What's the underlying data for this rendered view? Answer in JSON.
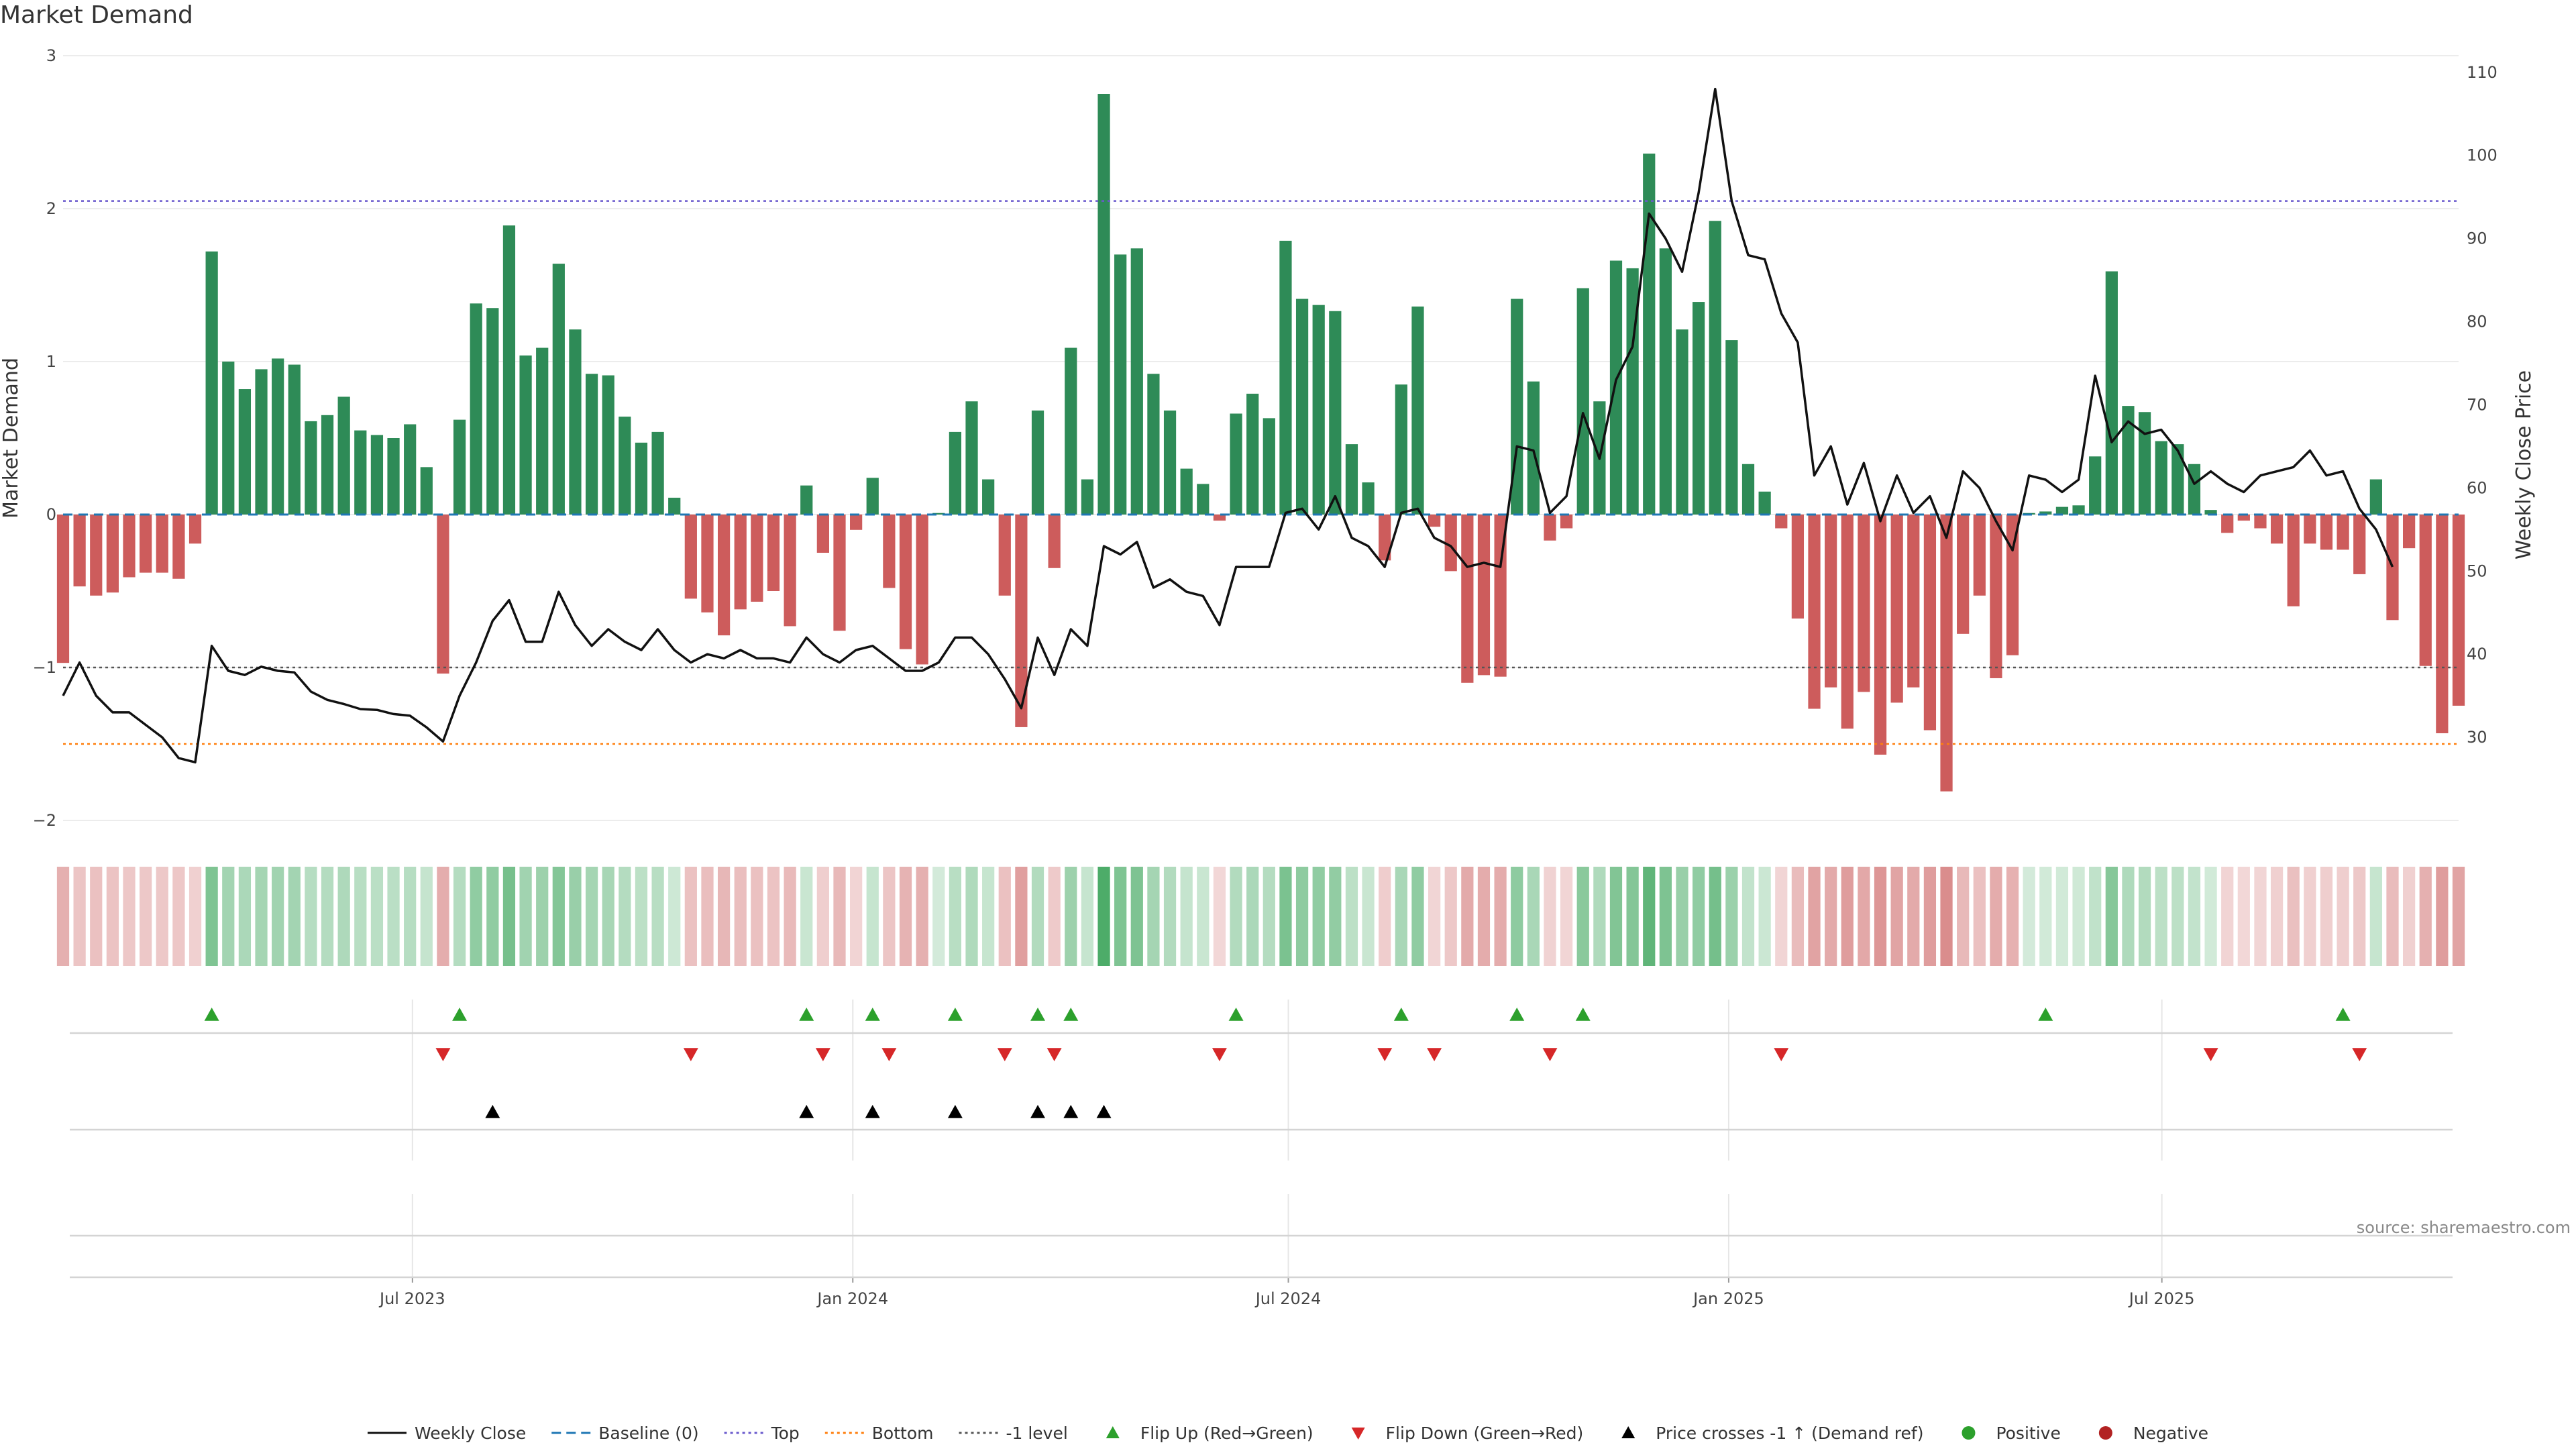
{
  "chart_data": {
    "type": "bar",
    "title": "Market Demand",
    "ylabel": "Market Demand",
    "y2label": "Weekly Close Price",
    "ylim": [
      -2,
      3
    ],
    "y2lim": [
      20,
      112
    ],
    "yticks": [
      3,
      2,
      1,
      0,
      -1,
      -2
    ],
    "yticklabels": [
      "3",
      "2",
      "1",
      "0",
      "−1",
      "−2"
    ],
    "y2ticks": [
      110,
      100,
      90,
      80,
      70,
      60,
      50,
      40,
      30
    ],
    "reference_lines": {
      "top": 2.05,
      "bottom": -1.5,
      "minus_one": -1.0,
      "baseline": 0
    },
    "x_start": "2023-02-05",
    "x_end": "2025-11-02",
    "xticks": [
      {
        "label": "Jul 2023",
        "date": "2023-07-01"
      },
      {
        "label": "Jan 2024",
        "date": "2024-01-01"
      },
      {
        "label": "Jul 2024",
        "date": "2024-07-01"
      },
      {
        "label": "Jan 2025",
        "date": "2025-01-01"
      },
      {
        "label": "Jul 2025",
        "date": "2025-07-01"
      }
    ],
    "series": [
      {
        "name": "Market Demand",
        "kind": "bar",
        "values": [
          -0.97,
          -0.47,
          -0.53,
          -0.51,
          -0.41,
          -0.38,
          -0.38,
          -0.42,
          -0.19,
          1.72,
          1.0,
          0.82,
          0.95,
          1.02,
          0.98,
          0.61,
          0.65,
          0.77,
          0.55,
          0.52,
          0.5,
          0.59,
          0.31,
          -1.04,
          0.62,
          1.38,
          1.35,
          1.89,
          1.04,
          1.09,
          1.64,
          1.21,
          0.92,
          0.91,
          0.64,
          0.47,
          0.54,
          0.11,
          -0.55,
          -0.64,
          -0.79,
          -0.62,
          -0.57,
          -0.5,
          -0.73,
          0.19,
          -0.25,
          -0.76,
          -0.1,
          0.24,
          -0.48,
          -0.88,
          -0.98,
          0.01,
          0.54,
          0.74,
          0.23,
          -0.53,
          -1.39,
          0.68,
          -0.35,
          1.09,
          0.23,
          2.75,
          1.7,
          1.74,
          0.92,
          0.68,
          0.3,
          0.2,
          -0.04,
          0.66,
          0.79,
          0.63,
          1.79,
          1.41,
          1.37,
          1.33,
          0.46,
          0.21,
          -0.3,
          0.85,
          1.36,
          -0.08,
          -0.37,
          -1.1,
          -1.05,
          -1.06,
          1.41,
          0.87,
          -0.17,
          -0.09,
          1.48,
          0.74,
          1.66,
          1.61,
          2.36,
          1.74,
          1.21,
          1.39,
          1.92,
          1.14,
          0.33,
          0.15,
          -0.09,
          -0.68,
          -1.27,
          -1.13,
          -1.4,
          -1.16,
          -1.57,
          -1.23,
          -1.13,
          -1.41,
          -1.81,
          -0.78,
          -0.53,
          -1.07,
          -0.92,
          0.01,
          0.02,
          0.05,
          0.06,
          0.38,
          1.59,
          0.71,
          0.67,
          0.48,
          0.46,
          0.33,
          0.03,
          -0.12,
          -0.04,
          -0.09,
          -0.19,
          -0.6,
          -0.19,
          -0.23,
          -0.23,
          -0.39,
          0.23,
          -0.69,
          -0.22,
          -0.99,
          -1.43,
          -1.25
        ]
      },
      {
        "name": "Weekly Close",
        "kind": "line",
        "values": [
          35.0,
          39.0,
          35.0,
          33.0,
          33.0,
          31.5,
          30.0,
          27.5,
          27.0,
          41.0,
          38.0,
          37.5,
          38.5,
          38.0,
          37.8,
          35.5,
          34.5,
          34.0,
          33.4,
          33.3,
          32.8,
          32.6,
          31.2,
          29.5,
          35.0,
          39.0,
          44.0,
          46.5,
          41.5,
          41.5,
          47.5,
          43.5,
          41.0,
          43.0,
          41.5,
          40.5,
          43.0,
          40.5,
          39.0,
          40.0,
          39.5,
          40.5,
          39.5,
          39.5,
          39.0,
          42.0,
          40.0,
          39.0,
          40.5,
          41.0,
          39.5,
          38.0,
          38.0,
          39.0,
          42.0,
          42.0,
          40.0,
          37.0,
          33.5,
          42.0,
          37.5,
          43.0,
          41.0,
          53.0,
          52.0,
          53.5,
          48.0,
          49.0,
          47.5,
          47.0,
          43.5,
          50.5,
          50.5,
          50.5,
          57.0,
          57.5,
          55.0,
          59.0,
          54.0,
          53.0,
          50.5,
          57.0,
          57.5,
          54.0,
          53.0,
          50.5,
          51.0,
          50.5,
          65.0,
          64.5,
          57.0,
          59.0,
          69.0,
          63.5,
          73.0,
          77.0,
          93.0,
          90.0,
          86.0,
          95.5,
          108.0,
          94.5,
          88.0,
          87.5,
          81.0,
          77.5,
          61.5,
          65.0,
          58.0,
          63.0,
          56.0,
          61.5,
          57.0,
          59.0,
          54.0,
          62.0,
          60.0,
          56.0,
          52.5,
          61.5,
          61.0,
          59.5,
          61.0,
          73.5,
          65.5,
          68.0,
          66.5,
          67.0,
          64.5,
          60.5,
          62.0,
          60.5,
          59.5,
          61.5,
          62.0,
          62.5,
          64.5,
          61.5,
          62.0,
          57.5,
          55.0,
          50.5
        ]
      }
    ],
    "markers": {
      "flip_up": [
        9,
        24,
        45,
        49,
        54,
        59,
        61,
        71,
        81,
        88,
        92,
        120,
        138
      ],
      "flip_down": [
        23,
        38,
        46,
        50,
        57,
        60,
        70,
        80,
        83,
        90,
        104,
        130,
        139
      ],
      "price_cross": [
        26,
        45,
        49,
        54,
        59,
        61,
        63
      ],
      "positive": [],
      "negative": []
    },
    "colors": {
      "positive_bar": "#2e8b57",
      "negative_bar": "#cd5c5c",
      "line": "#111111",
      "baseline": "#1f77b4",
      "top": "#6a5acd",
      "bottom": "#ff7f0e",
      "minus_one": "#555555",
      "flip_up": "#2ca02c",
      "flip_down": "#d62728",
      "price_cross": "#000000",
      "positive_dot": "#2ca02c",
      "negative_dot": "#b22222"
    },
    "legend": {
      "placement": "bottom-center",
      "entries": [
        {
          "label": "Weekly Close",
          "kind": "line",
          "color": "#111111",
          "dash": "solid"
        },
        {
          "label": "Baseline (0)",
          "kind": "line",
          "color": "#1f77b4",
          "dash": "dashed"
        },
        {
          "label": "Top",
          "kind": "line",
          "color": "#6a5acd",
          "dash": "dotted"
        },
        {
          "label": "Bottom",
          "kind": "line",
          "color": "#ff7f0e",
          "dash": "dotted"
        },
        {
          "label": "-1 level",
          "kind": "line",
          "color": "#555555",
          "dash": "dotted"
        },
        {
          "label": "Flip Up (Red→Green)",
          "kind": "tri-up",
          "color": "#2ca02c"
        },
        {
          "label": "Flip Down (Green→Red)",
          "kind": "tri-down",
          "color": "#d62728"
        },
        {
          "label": "Price crosses -1 ↑ (Demand ref)",
          "kind": "tri-up",
          "color": "#000000"
        },
        {
          "label": "Positive",
          "kind": "dot",
          "color": "#2ca02c"
        },
        {
          "label": "Negative",
          "kind": "dot",
          "color": "#b22222"
        }
      ]
    },
    "grid": true
  },
  "source": "source: sharemaestro.com"
}
